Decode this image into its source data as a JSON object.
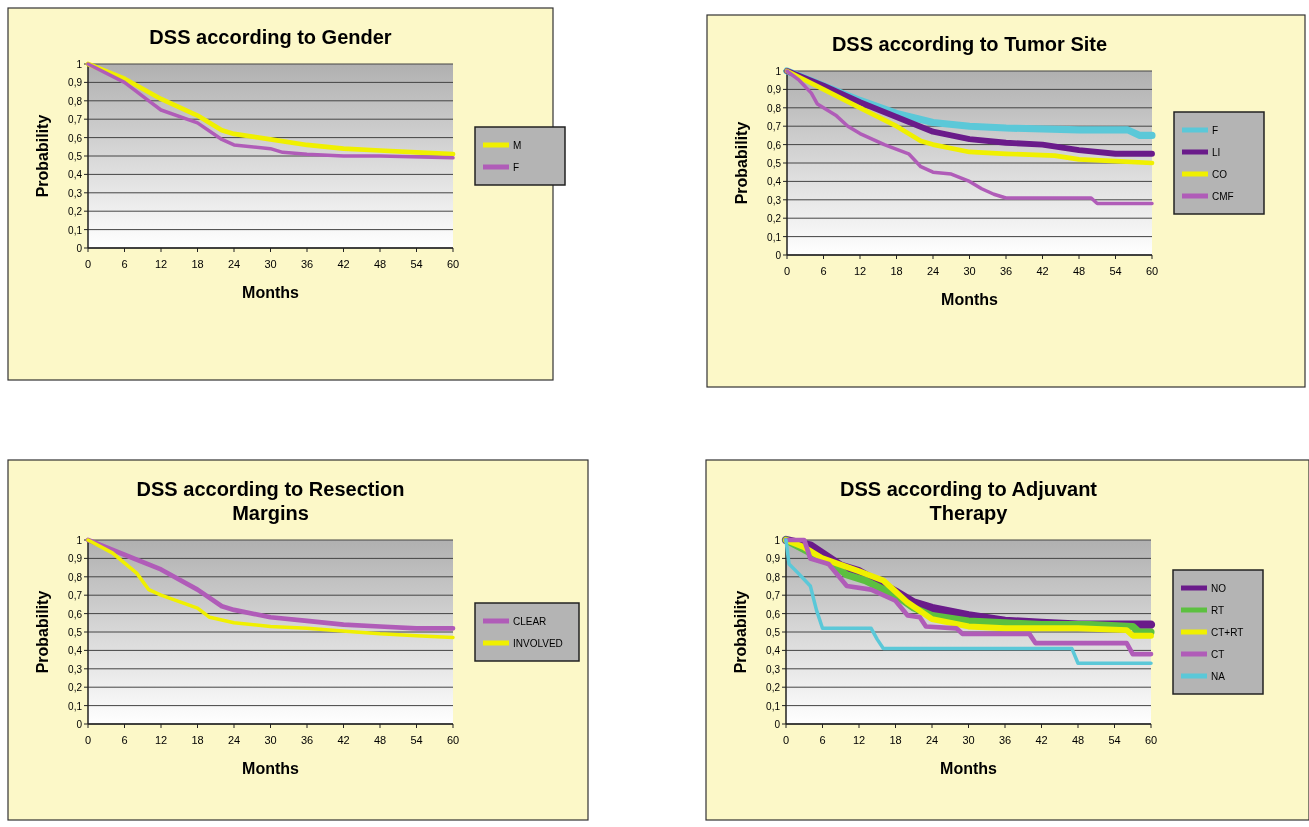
{
  "chart_data": [
    {
      "type": "line",
      "title": "DSS according to Gender",
      "xlabel": "Months",
      "ylabel": "Probability",
      "xlim": [
        0,
        60
      ],
      "ylim": [
        0,
        1
      ],
      "xticks": [
        0,
        6,
        12,
        18,
        24,
        30,
        36,
        42,
        48,
        54,
        60
      ],
      "yticks": [
        {
          "value": 0,
          "label": "0"
        },
        {
          "value": 0.1,
          "label": "0,1"
        },
        {
          "value": 0.2,
          "label": "0,2"
        },
        {
          "value": 0.3,
          "label": "0,3"
        },
        {
          "value": 0.4,
          "label": "0,4"
        },
        {
          "value": 0.5,
          "label": "0,5"
        },
        {
          "value": 0.6,
          "label": "0,6"
        },
        {
          "value": 0.7,
          "label": "0,7"
        },
        {
          "value": 0.8,
          "label": "0,8"
        },
        {
          "value": 0.9,
          "label": "0,9"
        },
        {
          "value": 1,
          "label": "1"
        }
      ],
      "grid": "y",
      "legend": "right",
      "series": [
        {
          "name": "M",
          "color": "#f0f000",
          "x": [
            0,
            6,
            12,
            18,
            22,
            24,
            30,
            36,
            42,
            48,
            54,
            60
          ],
          "values": [
            1,
            0.92,
            0.81,
            0.72,
            0.64,
            0.62,
            0.59,
            0.56,
            0.54,
            0.53,
            0.52,
            0.51
          ]
        },
        {
          "name": "F",
          "color": "#b05cb8",
          "x": [
            0,
            6,
            10,
            12,
            18,
            22,
            24,
            30,
            32,
            36,
            42,
            48,
            60
          ],
          "values": [
            1,
            0.9,
            0.8,
            0.75,
            0.68,
            0.59,
            0.56,
            0.54,
            0.52,
            0.51,
            0.5,
            0.5,
            0.49
          ]
        }
      ]
    },
    {
      "type": "line",
      "title": "DSS according to Tumor Site",
      "xlabel": "Months",
      "ylabel": "Probability",
      "xlim": [
        0,
        60
      ],
      "ylim": [
        0,
        1
      ],
      "xticks": [
        0,
        6,
        12,
        18,
        24,
        30,
        36,
        42,
        48,
        54,
        60
      ],
      "yticks": [
        {
          "value": 0,
          "label": "0"
        },
        {
          "value": 0.1,
          "label": "0,1"
        },
        {
          "value": 0.2,
          "label": "0,2"
        },
        {
          "value": 0.3,
          "label": "0,3"
        },
        {
          "value": 0.4,
          "label": "0,4"
        },
        {
          "value": 0.5,
          "label": "0,5"
        },
        {
          "value": 0.6,
          "label": "0,6"
        },
        {
          "value": 0.7,
          "label": "0,7"
        },
        {
          "value": 0.8,
          "label": "0,8"
        },
        {
          "value": 0.9,
          "label": "0,9"
        },
        {
          "value": 1,
          "label": "1"
        }
      ],
      "grid": "y",
      "legend": "right",
      "series": [
        {
          "name": "F",
          "color": "#5bc8d8",
          "x": [
            0,
            6,
            12,
            18,
            24,
            30,
            36,
            48,
            56,
            58,
            60
          ],
          "values": [
            1,
            0.92,
            0.84,
            0.77,
            0.72,
            0.7,
            0.69,
            0.68,
            0.68,
            0.65,
            0.65
          ]
        },
        {
          "name": "LI",
          "color": "#6a1b8a",
          "x": [
            0,
            6,
            12,
            18,
            24,
            30,
            36,
            42,
            48,
            54,
            60
          ],
          "values": [
            1,
            0.92,
            0.83,
            0.75,
            0.67,
            0.63,
            0.61,
            0.6,
            0.57,
            0.55,
            0.55
          ]
        },
        {
          "name": "CO",
          "color": "#f0f000",
          "x": [
            0,
            6,
            12,
            18,
            22,
            24,
            30,
            36,
            44,
            48,
            54,
            60
          ],
          "values": [
            1,
            0.9,
            0.8,
            0.7,
            0.62,
            0.6,
            0.56,
            0.55,
            0.54,
            0.52,
            0.51,
            0.5
          ]
        },
        {
          "name": "CMF",
          "color": "#b05cb8",
          "x": [
            0,
            2,
            4,
            5,
            8,
            10,
            12,
            16,
            20,
            22,
            24,
            27,
            30,
            32,
            34,
            36,
            50,
            51,
            60
          ],
          "values": [
            1,
            0.95,
            0.88,
            0.82,
            0.76,
            0.7,
            0.66,
            0.6,
            0.55,
            0.48,
            0.45,
            0.44,
            0.4,
            0.36,
            0.33,
            0.31,
            0.31,
            0.28,
            0.28
          ]
        }
      ]
    },
    {
      "type": "line",
      "title": "DSS according to Resection Margins",
      "xlabel": "Months",
      "ylabel": "Probability",
      "xlim": [
        0,
        60
      ],
      "ylim": [
        0,
        1
      ],
      "xticks": [
        0,
        6,
        12,
        18,
        24,
        30,
        36,
        42,
        48,
        54,
        60
      ],
      "yticks": [
        {
          "value": 0,
          "label": "0"
        },
        {
          "value": 0.1,
          "label": "0,1"
        },
        {
          "value": 0.2,
          "label": "0,2"
        },
        {
          "value": 0.3,
          "label": "0,3"
        },
        {
          "value": 0.4,
          "label": "0,4"
        },
        {
          "value": 0.5,
          "label": "0,5"
        },
        {
          "value": 0.6,
          "label": "0,6"
        },
        {
          "value": 0.7,
          "label": "0,7"
        },
        {
          "value": 0.8,
          "label": "0,8"
        },
        {
          "value": 0.9,
          "label": "0,9"
        },
        {
          "value": 1,
          "label": "1"
        }
      ],
      "grid": "y",
      "legend": "right",
      "series": [
        {
          "name": "CLEAR",
          "color": "#b05cb8",
          "x": [
            0,
            6,
            12,
            18,
            22,
            24,
            30,
            36,
            42,
            48,
            54,
            60
          ],
          "values": [
            1,
            0.92,
            0.84,
            0.73,
            0.64,
            0.62,
            0.58,
            0.56,
            0.54,
            0.53,
            0.52,
            0.52
          ]
        },
        {
          "name": "INVOLVED",
          "color": "#f0f000",
          "x": [
            0,
            4,
            8,
            10,
            12,
            18,
            20,
            24,
            30,
            36,
            44,
            48,
            54,
            60
          ],
          "values": [
            1,
            0.93,
            0.82,
            0.73,
            0.7,
            0.63,
            0.58,
            0.55,
            0.53,
            0.52,
            0.5,
            0.49,
            0.48,
            0.47
          ]
        }
      ]
    },
    {
      "type": "line",
      "title": "DSS according to Adjuvant Therapy",
      "xlabel": "Months",
      "ylabel": "Probability",
      "xlim": [
        0,
        60
      ],
      "ylim": [
        0,
        1
      ],
      "xticks": [
        0,
        6,
        12,
        18,
        24,
        30,
        36,
        42,
        48,
        54,
        60
      ],
      "yticks": [
        {
          "value": 0,
          "label": "0"
        },
        {
          "value": 0.1,
          "label": "0,1"
        },
        {
          "value": 0.2,
          "label": "0,2"
        },
        {
          "value": 0.3,
          "label": "0,3"
        },
        {
          "value": 0.4,
          "label": "0,4"
        },
        {
          "value": 0.5,
          "label": "0,5"
        },
        {
          "value": 0.6,
          "label": "0,6"
        },
        {
          "value": 0.7,
          "label": "0,7"
        },
        {
          "value": 0.8,
          "label": "0,8"
        },
        {
          "value": 0.9,
          "label": "0,9"
        },
        {
          "value": 1,
          "label": "1"
        }
      ],
      "grid": "y",
      "legend": "right",
      "series": [
        {
          "name": "NO",
          "color": "#6a1b8a",
          "x": [
            0,
            4,
            9,
            12,
            18,
            21,
            24,
            30,
            36,
            42,
            48,
            54,
            60
          ],
          "values": [
            1,
            0.97,
            0.86,
            0.83,
            0.72,
            0.66,
            0.63,
            0.59,
            0.56,
            0.55,
            0.54,
            0.54,
            0.54
          ]
        },
        {
          "name": "RT",
          "color": "#5cc040",
          "x": [
            0,
            4,
            8,
            10,
            13,
            18,
            21,
            24,
            30,
            36,
            42,
            50,
            57,
            58,
            60
          ],
          "values": [
            1,
            0.93,
            0.86,
            0.81,
            0.78,
            0.7,
            0.63,
            0.59,
            0.56,
            0.55,
            0.54,
            0.54,
            0.53,
            0.5,
            0.5
          ]
        },
        {
          "name": "CT+RT",
          "color": "#f0f000",
          "x": [
            0,
            3,
            6,
            12,
            16,
            20,
            24,
            30,
            36,
            48,
            56,
            57,
            60
          ],
          "values": [
            1,
            0.96,
            0.9,
            0.83,
            0.78,
            0.66,
            0.57,
            0.53,
            0.52,
            0.52,
            0.51,
            0.48,
            0.48
          ]
        },
        {
          "name": "CT",
          "color": "#b05cb8",
          "x": [
            0,
            3,
            4,
            7,
            10,
            14,
            16,
            18,
            20,
            22,
            23,
            28,
            29,
            40,
            41,
            56,
            57,
            60
          ],
          "values": [
            1,
            1,
            0.9,
            0.87,
            0.75,
            0.73,
            0.7,
            0.67,
            0.59,
            0.58,
            0.53,
            0.52,
            0.49,
            0.49,
            0.44,
            0.44,
            0.38,
            0.38
          ]
        },
        {
          "name": "NA",
          "color": "#5bc8d8",
          "x": [
            0,
            0.5,
            2,
            4,
            5,
            6,
            14,
            15,
            16,
            47,
            48,
            60
          ],
          "values": [
            1,
            0.87,
            0.82,
            0.75,
            0.62,
            0.52,
            0.52,
            0.46,
            0.41,
            0.41,
            0.33,
            0.33
          ]
        }
      ]
    }
  ]
}
